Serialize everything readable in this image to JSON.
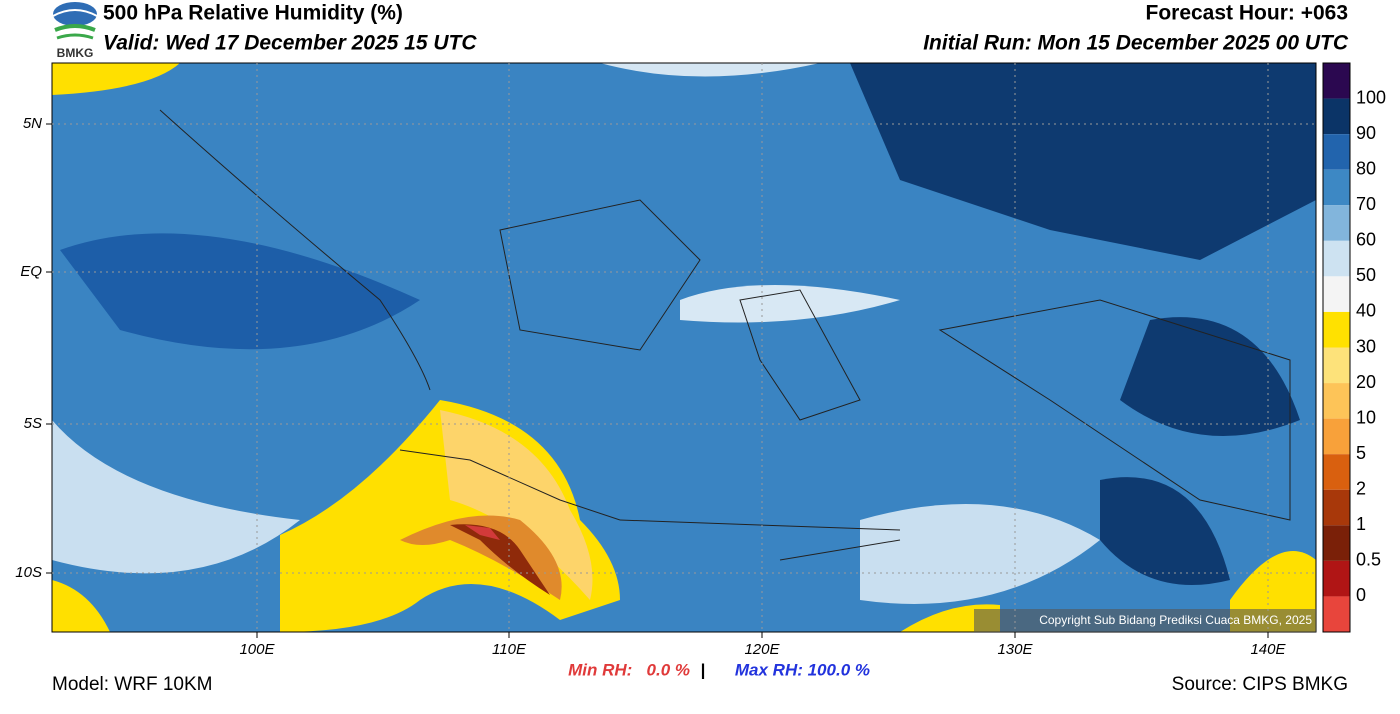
{
  "header": {
    "title": "500 hPa Relative Humidity (%)",
    "valid": "Valid: Wed 17 December 2025 15 UTC",
    "forecast_hour": "Forecast Hour: +063",
    "initial_run": "Initial Run: Mon 15 December 2025 00 UTC",
    "logo_text": "BMKG"
  },
  "map": {
    "lat_labels": [
      "5N",
      "EQ",
      "5S",
      "10S"
    ],
    "lon_labels": [
      "100E",
      "110E",
      "120E",
      "130E",
      "140E"
    ],
    "copyright": "Copyright Sub Bidang Prediksi Cuaca BMKG, 2025"
  },
  "colorbar": {
    "labels": [
      "100",
      "90",
      "80",
      "70",
      "60",
      "50",
      "40",
      "30",
      "20",
      "10",
      "5",
      "2",
      "1",
      "0.5",
      "0"
    ]
  },
  "footer": {
    "model": "Model: WRF 10KM",
    "min_rh": "Min RH:   0.0 %",
    "separator": "|",
    "max_rh": "Max RH: 100.0 %",
    "source": "Source: CIPS BMKG"
  }
}
